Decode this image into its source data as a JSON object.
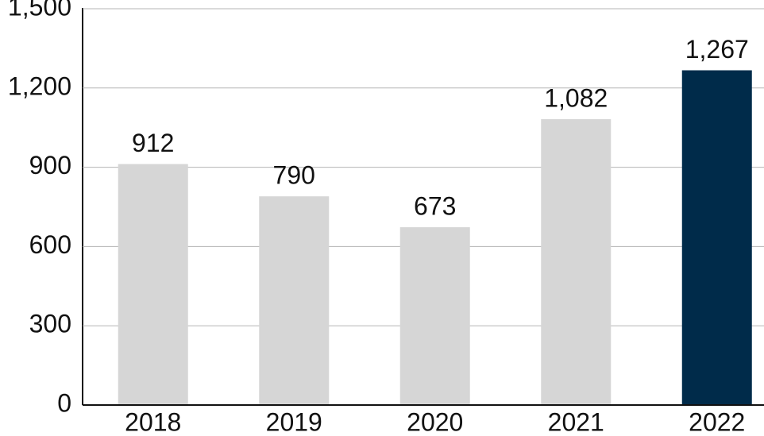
{
  "chart_data": {
    "type": "bar",
    "categories": [
      "2018",
      "2019",
      "2020",
      "2021",
      "2022"
    ],
    "values": [
      912,
      790,
      673,
      1082,
      1267
    ],
    "value_labels": [
      "912",
      "790",
      "673",
      "1,082",
      "1,267"
    ],
    "colors": [
      "#d6d6d6",
      "#d6d6d6",
      "#d6d6d6",
      "#d6d6d6",
      "#002b4a"
    ],
    "ylim": [
      0,
      1500
    ],
    "yticks": [
      0,
      300,
      600,
      900,
      {
        "value": 1200,
        "label": "1,200"
      },
      {
        "value": 1500,
        "label": "1,500"
      }
    ],
    "grid": true
  }
}
